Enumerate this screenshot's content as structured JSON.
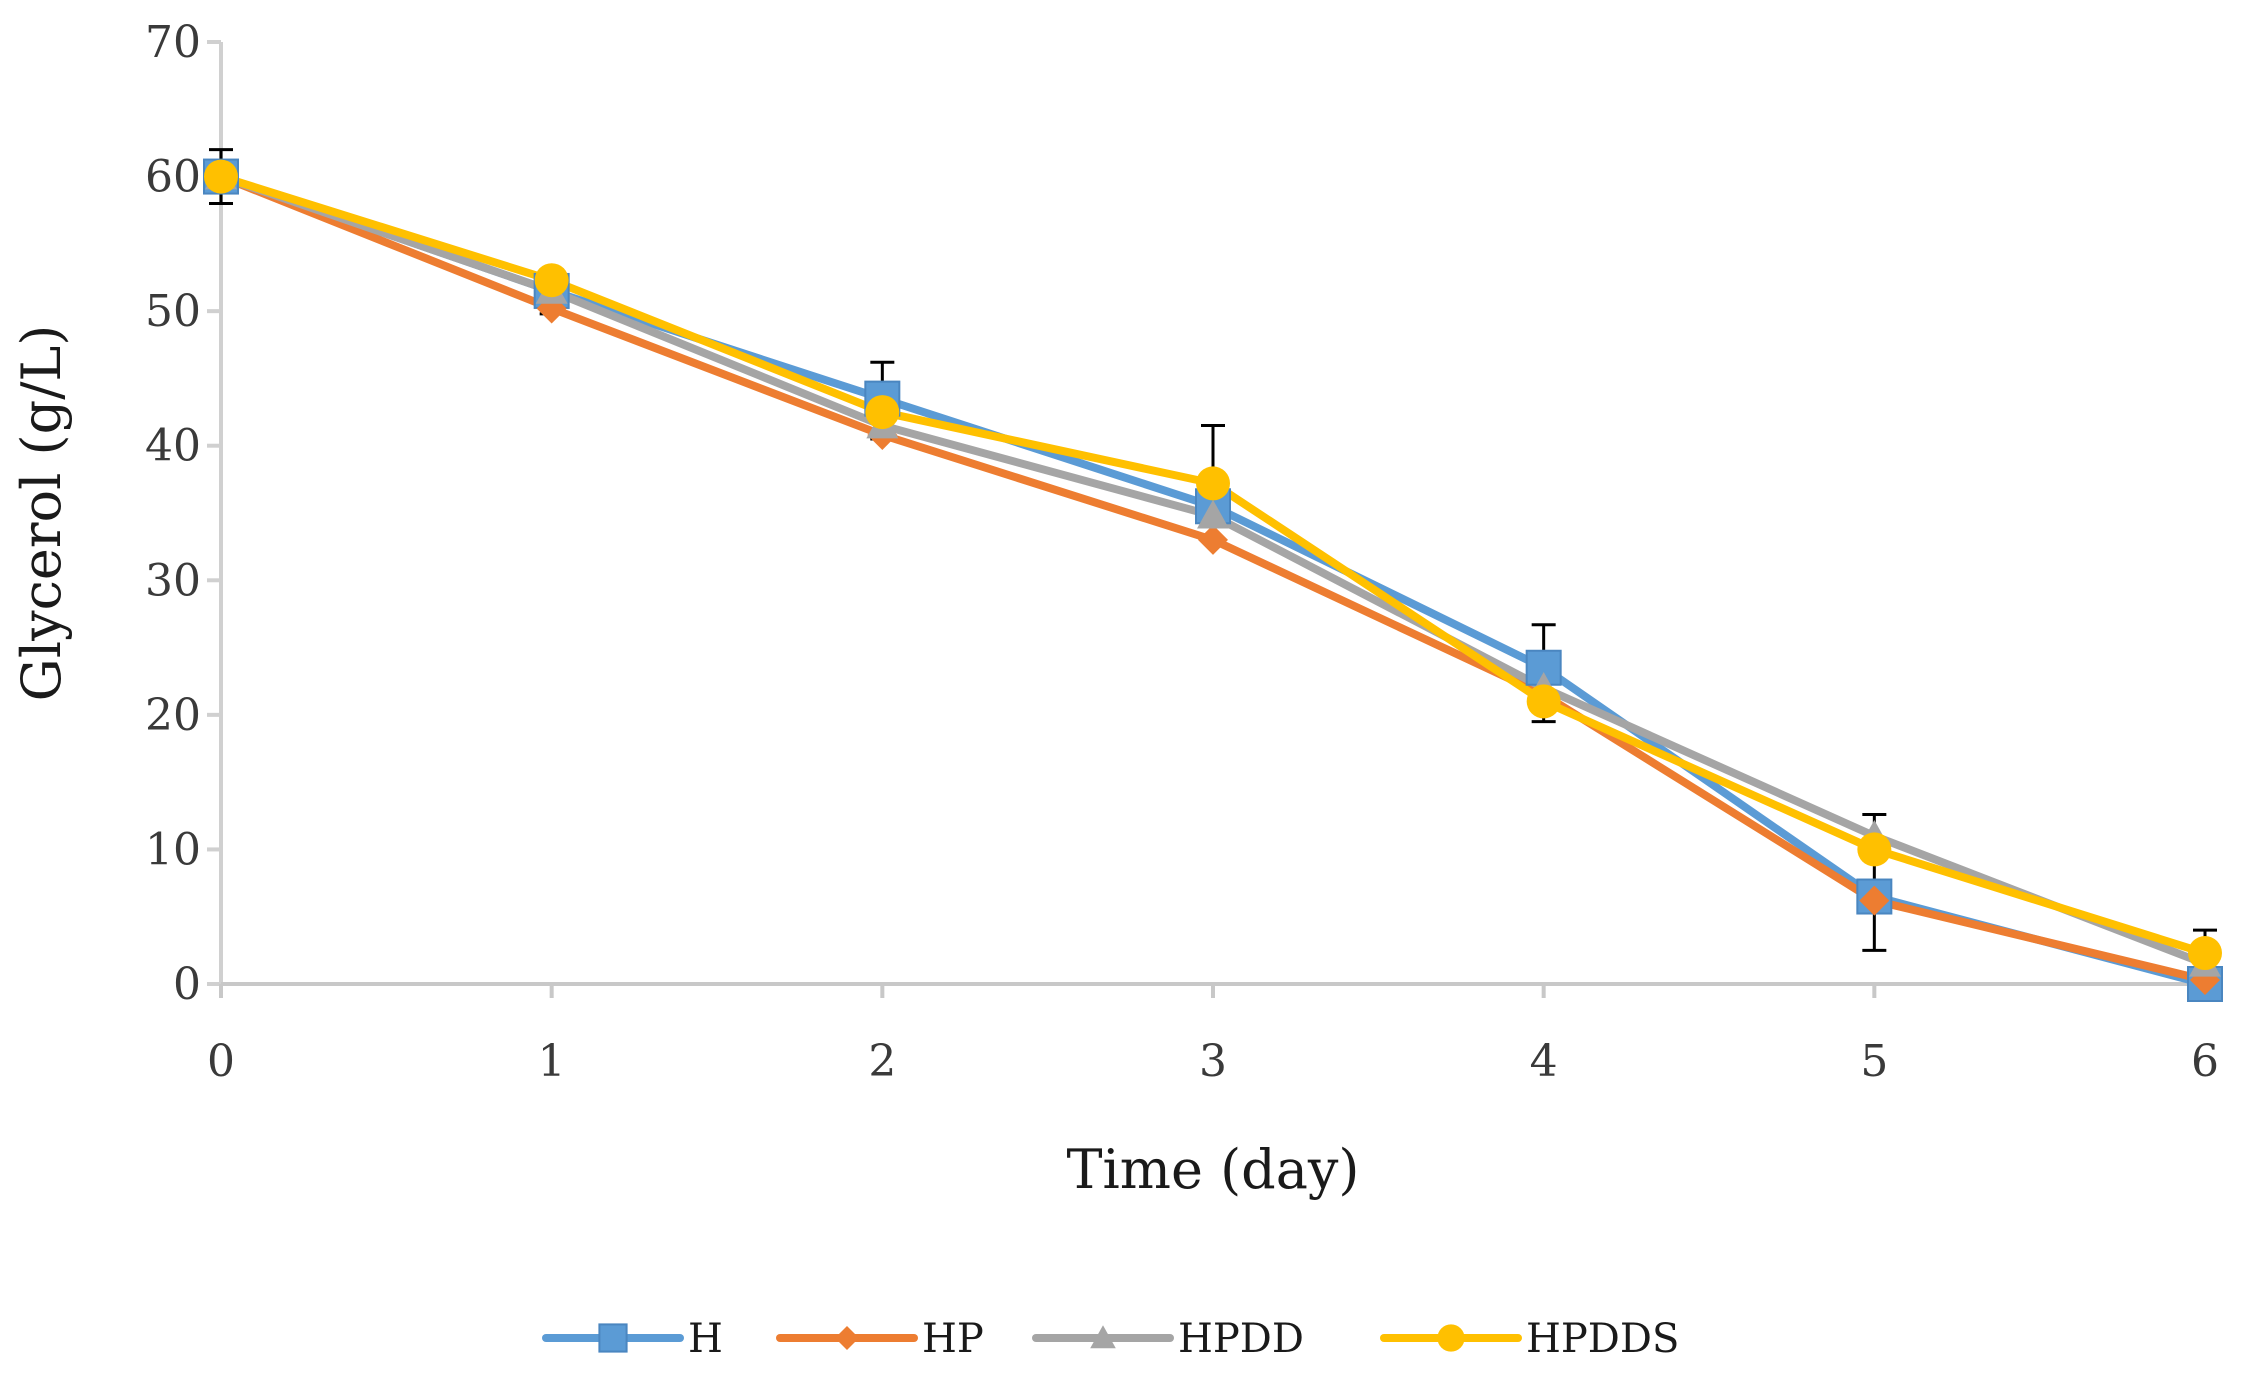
{
  "chart_data": {
    "type": "line",
    "title": "",
    "xlabel": "Time (day)",
    "ylabel": "Glycerol (g/L)",
    "x": [
      0,
      1,
      2,
      3,
      4,
      5,
      6
    ],
    "x_tick_labels": [
      "0",
      "1",
      "2",
      "3",
      "4",
      "5",
      "6"
    ],
    "xlim": [
      0,
      6
    ],
    "ylim": [
      0,
      70
    ],
    "y_ticks": [
      0,
      10,
      20,
      30,
      40,
      50,
      60,
      70
    ],
    "y_tick_labels": [
      "0",
      "10",
      "20",
      "30",
      "40",
      "50",
      "60",
      "70"
    ],
    "grid": false,
    "legend_position": "bottom",
    "series": [
      {
        "name": "H",
        "color": "#5b9bd5",
        "marker": "square",
        "values": [
          60,
          51.5,
          43.5,
          35.5,
          23.5,
          6.5,
          0
        ],
        "error_upper": [
          null,
          null,
          2.7,
          null,
          3.2,
          null,
          null
        ]
      },
      {
        "name": "HP",
        "color": "#ed7d31",
        "marker": "diamond",
        "values": [
          60,
          50.2,
          40.8,
          33,
          21.5,
          6.2,
          0.3
        ],
        "error_upper": [
          null,
          null,
          null,
          null,
          null,
          null,
          null
        ]
      },
      {
        "name": "HPDD",
        "color": "#a5a5a5",
        "marker": "triangle",
        "values": [
          60,
          51.5,
          41.5,
          34.8,
          22,
          11,
          1.5
        ],
        "error_upper": [
          null,
          null,
          null,
          null,
          null,
          1.6,
          null
        ]
      },
      {
        "name": "HPDDS",
        "color": "#ffc000",
        "marker": "circle",
        "values": [
          60,
          52.3,
          42.5,
          37.2,
          21,
          10,
          2.3
        ],
        "error_upper": [
          2,
          null,
          null,
          4.3,
          null,
          null,
          1.7
        ],
        "error_lower": [
          2,
          2.5,
          2,
          null,
          1.5,
          7.5,
          null
        ]
      }
    ]
  }
}
